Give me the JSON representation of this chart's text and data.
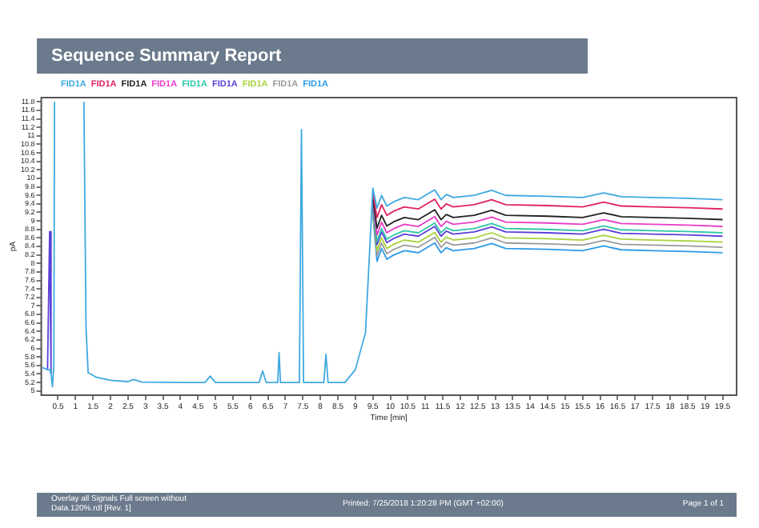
{
  "chart_data": {
    "type": "line",
    "title": "Sequence Summary Report",
    "xlabel": "Time [min]",
    "ylabel": "pA",
    "legend": "top left",
    "grid": false,
    "annotations": [
      "Overlay all Signals Full screen without Data.120%.rdl [Rev. 1]",
      "Printed: 7/25/2018 1:20:28 PM (GMT +02:00)",
      "Page 1 of 1"
    ],
    "x": [
      0.05,
      0.2,
      0.26,
      0.3,
      0.34,
      0.38,
      0.4,
      0.8,
      1.24,
      1.3,
      1.36,
      1.6,
      2.0,
      2.5,
      2.65,
      2.9,
      4.0,
      4.7,
      4.85,
      5.0,
      6.25,
      6.35,
      6.45,
      6.78,
      6.82,
      6.86,
      7.4,
      7.46,
      7.52,
      8.1,
      8.16,
      8.22,
      8.7,
      9.0,
      9.29,
      9.5,
      9.62,
      9.75,
      9.9,
      10.1,
      10.4,
      10.8,
      11.27,
      11.45,
      11.6,
      11.8,
      12.4,
      12.9,
      13.3,
      14.5,
      15.5,
      16.1,
      16.6,
      17.5,
      18.5,
      19.5
    ],
    "xlim": [
      0.02,
      19.9
    ],
    "ylim": [
      4.9,
      11.9
    ],
    "xticks": [
      0.5,
      1,
      1.5,
      2,
      2.5,
      3,
      3.5,
      4,
      4.5,
      5,
      5.5,
      6,
      6.5,
      7,
      7.5,
      8,
      8.5,
      9,
      9.5,
      10,
      10.5,
      11,
      11.5,
      12,
      12.5,
      13,
      13.5,
      14,
      14.5,
      15,
      15.5,
      16,
      16.5,
      17,
      17.5,
      18,
      18.5,
      19,
      19.5
    ],
    "yticks": [
      5,
      5.2,
      5.4,
      5.6,
      5.8,
      6,
      6.2,
      6.4,
      6.6,
      6.8,
      7,
      7.2,
      7.4,
      7.6,
      7.8,
      8,
      8.2,
      8.4,
      8.6,
      8.8,
      9,
      9.2,
      9.4,
      9.6,
      9.8,
      10,
      10.2,
      10.4,
      10.6,
      10.8,
      11,
      11.2,
      11.4,
      11.6,
      11.8
    ],
    "series": [
      {
        "name": "FID1A",
        "color": "#3fa9e0",
        "values": [
          5.55,
          5.5,
          5.5,
          5.4,
          5.1,
          5.6,
          11.8,
          null,
          11.8,
          6.5,
          5.43,
          5.32,
          5.25,
          5.22,
          5.27,
          5.21,
          5.2,
          5.2,
          5.35,
          5.2,
          5.2,
          5.47,
          5.2,
          5.2,
          5.9,
          5.2,
          5.2,
          11.15,
          5.2,
          5.2,
          5.86,
          5.2,
          5.2,
          5.5,
          6.37,
          9.77,
          9.3,
          9.6,
          9.35,
          9.45,
          9.55,
          9.5,
          9.73,
          9.5,
          9.62,
          9.55,
          9.6,
          9.72,
          9.6,
          9.58,
          9.55,
          9.66,
          9.57,
          9.55,
          9.53,
          9.5
        ]
      },
      {
        "name": "FID1A",
        "color": "#e0245e",
        "values": [
          null,
          null,
          null,
          null,
          null,
          null,
          null,
          null,
          null,
          null,
          null,
          null,
          null,
          null,
          null,
          null,
          null,
          null,
          null,
          null,
          null,
          null,
          null,
          null,
          null,
          null,
          null,
          null,
          null,
          null,
          null,
          null,
          null,
          null,
          null,
          9.66,
          9.08,
          9.38,
          9.13,
          9.23,
          9.33,
          9.28,
          9.51,
          9.28,
          9.4,
          9.33,
          9.38,
          9.5,
          9.38,
          9.36,
          9.33,
          9.44,
          9.35,
          9.33,
          9.31,
          9.28
        ]
      },
      {
        "name": "FID1A",
        "color": "#222222",
        "values": [
          null,
          null,
          null,
          null,
          null,
          null,
          null,
          null,
          null,
          null,
          null,
          null,
          null,
          null,
          null,
          null,
          null,
          null,
          null,
          null,
          null,
          null,
          null,
          null,
          null,
          null,
          null,
          null,
          null,
          null,
          null,
          null,
          null,
          null,
          null,
          9.54,
          8.83,
          9.13,
          8.88,
          8.98,
          9.08,
          9.03,
          9.26,
          9.03,
          9.15,
          9.08,
          9.13,
          9.25,
          9.13,
          9.11,
          9.08,
          9.19,
          9.1,
          9.08,
          9.06,
          9.03
        ]
      },
      {
        "name": "FID1A",
        "color": "#e83cc8",
        "values": [
          null,
          null,
          null,
          null,
          null,
          null,
          null,
          null,
          null,
          null,
          null,
          null,
          null,
          null,
          null,
          null,
          null,
          null,
          null,
          null,
          null,
          null,
          null,
          null,
          null,
          null,
          null,
          null,
          null,
          null,
          null,
          null,
          null,
          null,
          null,
          9.46,
          8.67,
          8.97,
          8.72,
          8.82,
          8.92,
          8.87,
          9.1,
          8.87,
          8.99,
          8.92,
          8.97,
          9.09,
          8.97,
          8.95,
          8.92,
          9.03,
          8.94,
          8.92,
          8.9,
          8.87
        ]
      },
      {
        "name": "FID1A",
        "color": "#2fc7a8",
        "values": [
          null,
          null,
          null,
          null,
          null,
          null,
          null,
          null,
          null,
          null,
          null,
          null,
          null,
          null,
          null,
          null,
          null,
          null,
          null,
          null,
          null,
          null,
          null,
          null,
          null,
          null,
          null,
          null,
          null,
          null,
          null,
          null,
          null,
          null,
          null,
          9.38,
          8.52,
          8.82,
          8.57,
          8.67,
          8.77,
          8.72,
          8.95,
          8.72,
          8.84,
          8.77,
          8.82,
          8.94,
          8.82,
          8.8,
          8.77,
          8.88,
          8.79,
          8.77,
          8.75,
          8.72
        ]
      },
      {
        "name": "FID1A",
        "color": "#5a3fd8",
        "values": [
          null,
          5.5,
          8.75,
          5.4,
          null,
          null,
          null,
          null,
          null,
          null,
          null,
          null,
          null,
          null,
          null,
          null,
          null,
          null,
          null,
          null,
          null,
          null,
          null,
          null,
          null,
          null,
          null,
          null,
          null,
          null,
          null,
          null,
          null,
          null,
          null,
          9.32,
          8.44,
          8.74,
          8.49,
          8.59,
          8.69,
          8.64,
          8.87,
          8.64,
          8.76,
          8.69,
          8.74,
          8.86,
          8.74,
          8.72,
          8.69,
          8.8,
          8.71,
          8.69,
          8.67,
          8.64
        ]
      },
      {
        "name": "FID1A",
        "color": "#a8d23a",
        "values": [
          null,
          null,
          null,
          null,
          null,
          null,
          null,
          null,
          null,
          null,
          null,
          null,
          null,
          null,
          null,
          null,
          null,
          null,
          null,
          null,
          null,
          null,
          null,
          null,
          null,
          null,
          null,
          null,
          null,
          null,
          null,
          null,
          null,
          null,
          null,
          9.25,
          8.3,
          8.6,
          8.35,
          8.45,
          8.55,
          8.5,
          8.73,
          8.5,
          8.62,
          8.55,
          8.6,
          8.72,
          8.6,
          8.58,
          8.55,
          8.66,
          8.57,
          8.55,
          8.53,
          8.5
        ]
      },
      {
        "name": "FID1A",
        "color": "#9a9a9a",
        "values": [
          null,
          null,
          null,
          null,
          null,
          null,
          null,
          null,
          null,
          null,
          null,
          null,
          null,
          null,
          null,
          null,
          null,
          null,
          null,
          null,
          null,
          null,
          null,
          null,
          null,
          null,
          null,
          null,
          null,
          null,
          null,
          null,
          null,
          null,
          null,
          9.2,
          8.18,
          8.48,
          8.23,
          8.33,
          8.43,
          8.38,
          8.61,
          8.38,
          8.5,
          8.43,
          8.48,
          8.6,
          8.48,
          8.46,
          8.43,
          8.54,
          8.45,
          8.43,
          8.41,
          8.38
        ]
      },
      {
        "name": "FID1A",
        "color": "#2b9be8",
        "values": [
          null,
          null,
          null,
          null,
          null,
          null,
          null,
          null,
          null,
          null,
          null,
          null,
          null,
          null,
          null,
          null,
          null,
          null,
          null,
          null,
          null,
          null,
          null,
          null,
          null,
          null,
          null,
          null,
          null,
          null,
          null,
          null,
          null,
          null,
          null,
          9.15,
          8.05,
          8.35,
          8.1,
          8.2,
          8.3,
          8.25,
          8.48,
          8.25,
          8.37,
          8.3,
          8.35,
          8.47,
          8.35,
          8.33,
          8.3,
          8.41,
          8.32,
          8.3,
          8.28,
          8.25
        ]
      }
    ]
  }
}
